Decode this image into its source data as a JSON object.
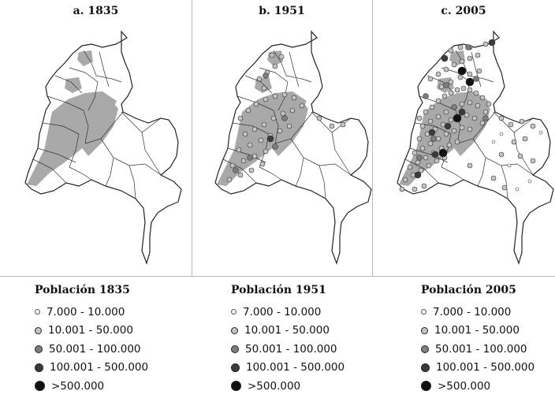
{
  "panels": [
    {
      "title": "a. 1835",
      "legend_title": "Población 1835",
      "year": "1835"
    },
    {
      "title": "b. 1951",
      "legend_title": "Población 1951",
      "year": "1951"
    },
    {
      "title": "c. 2005",
      "legend_title": "Población 2005",
      "year": "2005"
    }
  ],
  "legend_classes": [
    {
      "label": "7.000 - 10.000",
      "color": "#ffffff"
    },
    {
      "label": "10.001 - 50.000",
      "color": "#c4c4c4"
    },
    {
      "label": "50.001 - 100.000",
      "color": "#7d7d7d"
    },
    {
      "label": "100.001 - 500.000",
      "color": "#3b3b3b"
    },
    {
      "label": ">500.000",
      "color": "#111111"
    }
  ],
  "colors": {
    "settled_area": "#a9a9a9",
    "outline": "#222222",
    "divider": "#b9b9b9"
  }
}
